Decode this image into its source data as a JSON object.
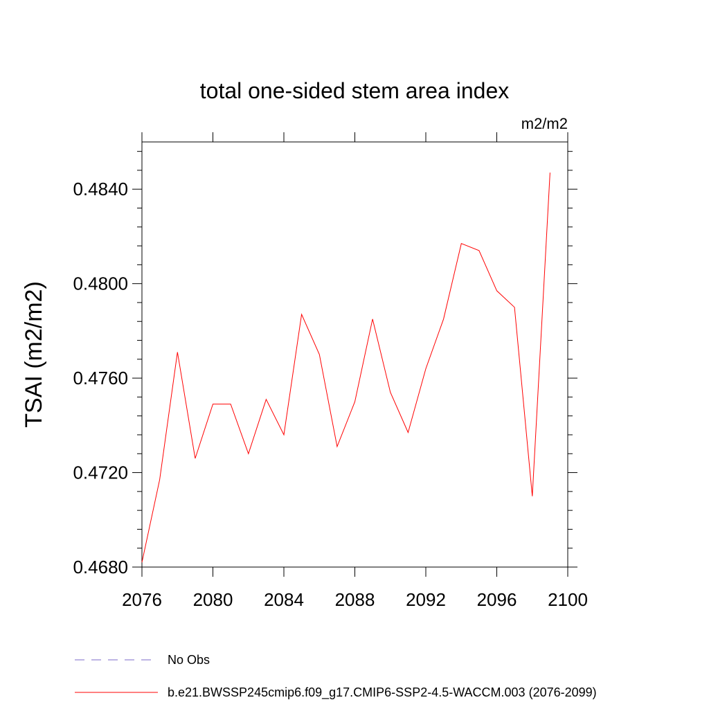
{
  "chart_data": {
    "type": "line",
    "title": "total one-sided stem area index",
    "units": "m2/m2",
    "ylabel": "TSAI  (m2/m2)",
    "xlabel": "",
    "xlim": [
      2076,
      2100
    ],
    "ylim": [
      0.468,
      0.486
    ],
    "x_ticks": [
      "2076",
      "2080",
      "2084",
      "2088",
      "2092",
      "2096",
      "2100"
    ],
    "y_ticks": [
      "0.4680",
      "0.4720",
      "0.4760",
      "0.4800",
      "0.4840"
    ],
    "grid": false,
    "series": [
      {
        "name": "b.e21.BWSSP245cmip6.f09_g17.CMIP6-SSP2-4.5-WACCM.003 (2076-2099)",
        "color": "#ff0000",
        "x": [
          2076,
          2077,
          2078,
          2079,
          2080,
          2081,
          2082,
          2083,
          2084,
          2085,
          2086,
          2087,
          2088,
          2089,
          2090,
          2091,
          2092,
          2093,
          2094,
          2095,
          2096,
          2097,
          2098,
          2099
        ],
        "y": [
          0.4682,
          0.4717,
          0.4771,
          0.4726,
          0.4749,
          0.4749,
          0.4728,
          0.4751,
          0.4736,
          0.4787,
          0.477,
          0.4731,
          0.475,
          0.4785,
          0.4754,
          0.4737,
          0.4764,
          0.4785,
          0.4817,
          0.4814,
          0.4797,
          0.479,
          0.471,
          0.4847
        ]
      }
    ],
    "legend": {
      "placement": "bottom",
      "entries": [
        {
          "label": "No Obs",
          "color": "#7b68c8",
          "style": "dashed"
        },
        {
          "label": "b.e21.BWSSP245cmip6.f09_g17.CMIP6-SSP2-4.5-WACCM.003 (2076-2099)",
          "color": "#ff0000",
          "style": "solid"
        }
      ]
    }
  }
}
